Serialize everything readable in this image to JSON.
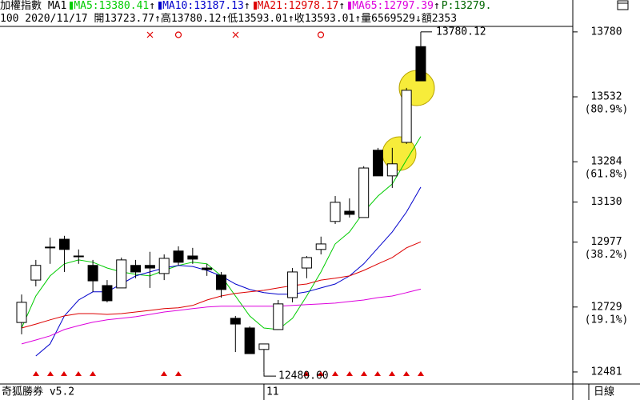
{
  "chart_data": {
    "type": "candlestick",
    "title": "加權指數 MA1",
    "header_extra": "P:13279.",
    "info_line": "100 2020/11/17 開13723.77↑高13780.12↑低13593.01↑收13593.01↑量6569529↓額2353",
    "app_name": "奇狐勝券 v5.2",
    "period": "日線",
    "categories": [
      null,
      null,
      null,
      null,
      null,
      null,
      null,
      null,
      null,
      null,
      null,
      null,
      null,
      null,
      null,
      null,
      null,
      "11",
      null,
      null,
      null,
      null,
      null,
      null,
      null,
      null,
      null,
      null,
      null
    ],
    "open": [
      12670,
      12832,
      12955,
      12988,
      12924,
      12888,
      12811,
      12802,
      12888,
      12888,
      12857,
      12943,
      12924,
      12878,
      12851,
      12686,
      12649,
      12567,
      12643,
      12765,
      12878,
      12949,
      13056,
      13095,
      13071,
      13328,
      13230,
      13358,
      13723.77
    ],
    "high": [
      12777,
      12909,
      12994,
      13001,
      12949,
      12909,
      12832,
      12918,
      12909,
      12940,
      12930,
      12961,
      12955,
      12894,
      12863,
      12695,
      12655,
      12588,
      12756,
      12878,
      12924,
      12998,
      13153,
      13144,
      13267,
      13337,
      13337,
      13566,
      13780.12
    ],
    "low": [
      12625,
      12808,
      12894,
      12863,
      12894,
      12787,
      12747,
      12802,
      12839,
      12802,
      12832,
      12888,
      12894,
      12848,
      12765,
      12557,
      12551,
      12480.6,
      12643,
      12747,
      12839,
      12930,
      13046,
      13071,
      13071,
      13230,
      13184,
      13352,
      13593.01
    ],
    "close": [
      12747,
      12888,
      12958,
      12949,
      12921,
      12829,
      12753,
      12909,
      12863,
      12878,
      12915,
      12900,
      12912,
      12872,
      12796,
      12664,
      12551,
      12588,
      12741,
      12863,
      12918,
      12970,
      13129,
      13083,
      13260,
      13230,
      13276,
      13557,
      13593.01
    ],
    "up_color": "#ffffff",
    "down_color": "#000000",
    "ma_series": [
      {
        "name": "MA5:13380.41",
        "trend": "↑",
        "color": "#00cc00",
        "values": [
          12649,
          12771,
          12848,
          12894,
          12909,
          12900,
          12878,
          12863,
          12854,
          12848,
          12869,
          12888,
          12900,
          12894,
          12848,
          12771,
          12695,
          12649,
          12643,
          12686,
          12771,
          12863,
          12970,
          13016,
          13092,
          13153,
          13199,
          13291,
          13380.41
        ]
      },
      {
        "name": "MA10:13187.13",
        "trend": "↑",
        "color": "#0000cc",
        "values": [
          null,
          12542,
          12588,
          12695,
          12756,
          12787,
          12787,
          12817,
          12848,
          12863,
          12878,
          12888,
          12884,
          12869,
          12848,
          12817,
          12796,
          12784,
          12778,
          12778,
          12787,
          12802,
          12817,
          12848,
          12894,
          12955,
          13016,
          13092,
          13187.13
        ]
      },
      {
        "name": "MA21:12978.17",
        "trend": "↑",
        "color": "#dd0000",
        "values": [
          12649,
          12664,
          12680,
          12695,
          12704,
          12704,
          12701,
          12704,
          12710,
          12716,
          12723,
          12726,
          12735,
          12756,
          12771,
          12781,
          12787,
          12793,
          12802,
          12811,
          12817,
          12832,
          12839,
          12848,
          12869,
          12894,
          12918,
          12955,
          12978.17
        ]
      },
      {
        "name": "MA65:12797.39",
        "trend": "↑",
        "color": "#dd00dd",
        "values": [
          12588,
          12603,
          12619,
          12643,
          12658,
          12671,
          12680,
          12686,
          12692,
          12701,
          12710,
          12716,
          12723,
          12729,
          12732,
          12732,
          12732,
          12732,
          12732,
          12735,
          12738,
          12741,
          12744,
          12750,
          12756,
          12765,
          12771,
          12784,
          12797.39
        ]
      }
    ],
    "ylim": [
      12435,
      13801
    ],
    "yticks": [
      13780,
      13532,
      13284,
      13130,
      12977,
      12729,
      12481
    ],
    "level_labels": [
      {
        "value": 13532,
        "label": "(80.9%)"
      },
      {
        "value": 13284,
        "label": "(61.8%)"
      },
      {
        "value": 12977,
        "label": "(38.2%)"
      },
      {
        "value": 12729,
        "label": "(19.1%)"
      }
    ],
    "annotations": [
      {
        "text": "13780.12",
        "value": 13780.12
      },
      {
        "text": "12480.60",
        "value": 12480.6
      }
    ]
  }
}
